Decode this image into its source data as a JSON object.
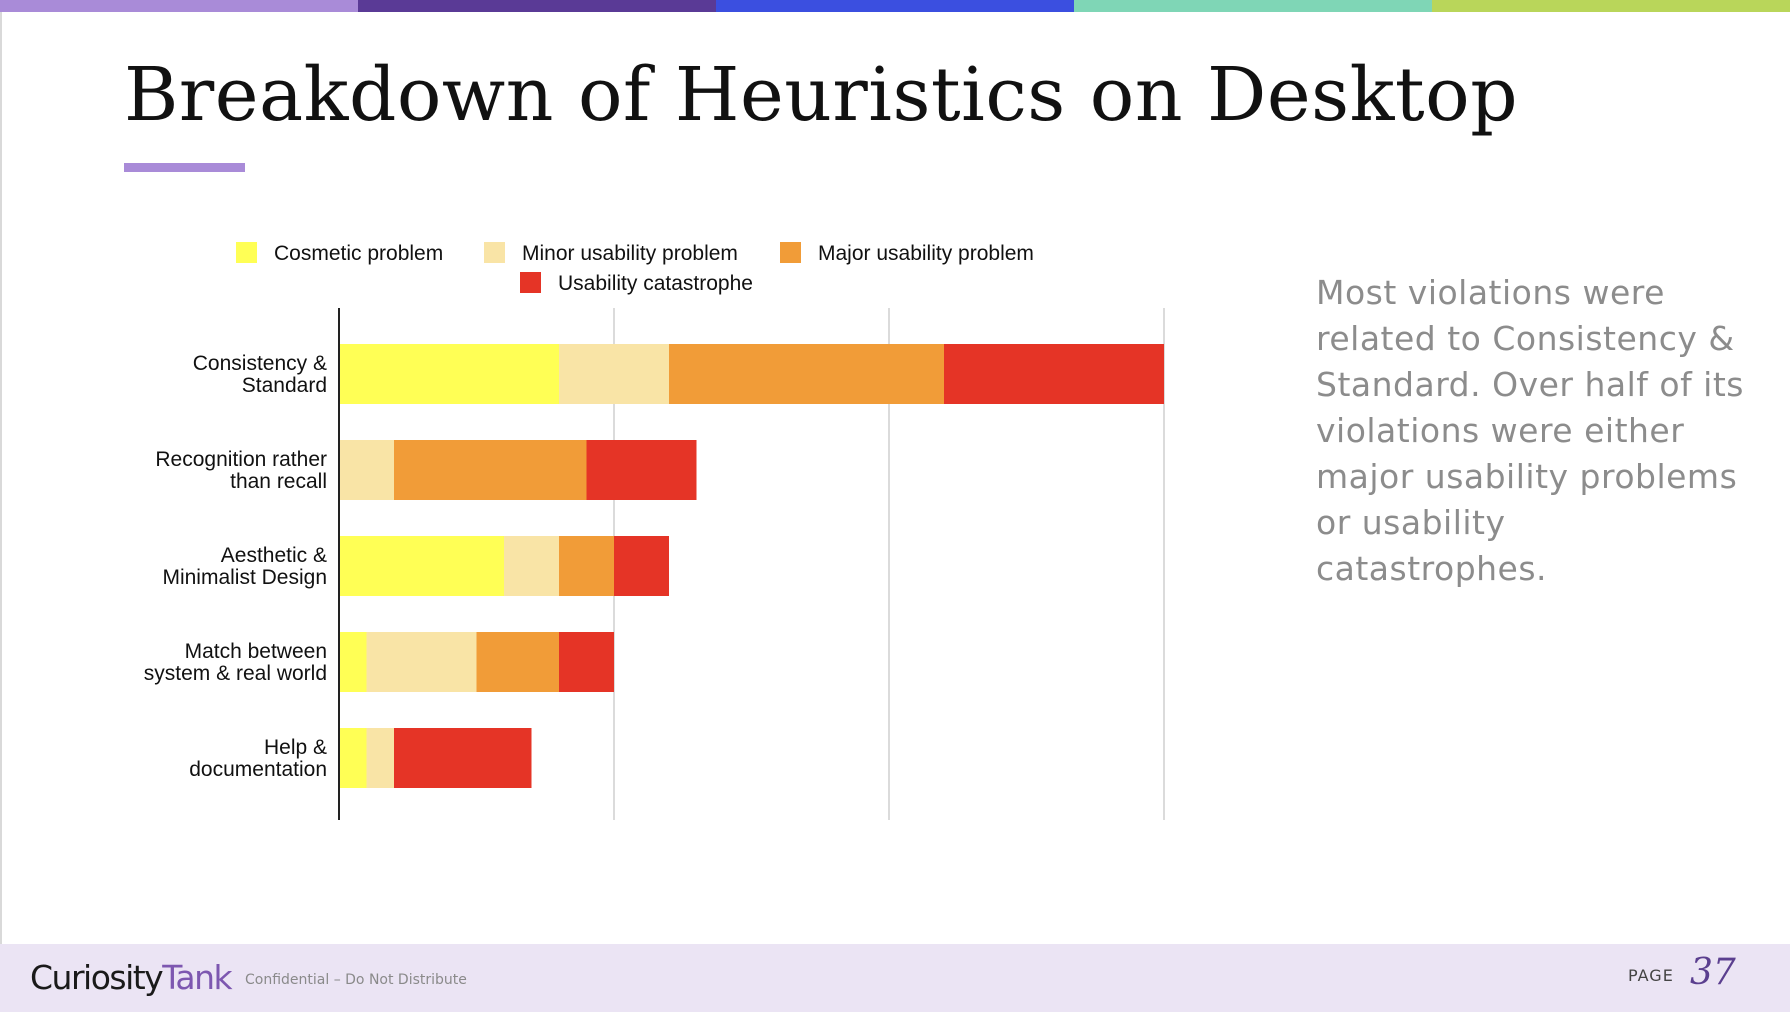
{
  "slide": {
    "title": "Breakdown of Heuristics on Desktop",
    "summary": "Most violations were related to Consistency & Standard. Over half of its violations were either major usability problems or usability catastrophes."
  },
  "colors": {
    "top_bar": [
      "#a98bd8",
      "#5a3a96",
      "#3b4fe0",
      "#7fd6b6",
      "#b9d65a"
    ],
    "title_underline": "#a98bd8",
    "footer_bg": "#ebe4f4",
    "brand_purple": "#7d57b0"
  },
  "footer": {
    "logo_part1": "Curiosity",
    "logo_part2": "Tank",
    "confidential": "Confidential – Do Not Distribute",
    "page_label": "PAGE",
    "page_number": "37"
  },
  "chart_data": {
    "type": "bar",
    "orientation": "horizontal",
    "stacked": true,
    "categories": [
      "Consistency & Standard",
      "Recognition rather than recall",
      "Aesthetic & Minimalist Design",
      "Match between system & real world",
      "Help & documentation"
    ],
    "category_lines": [
      [
        "Consistency &",
        "Standard"
      ],
      [
        "Recognition rather",
        "than recall"
      ],
      [
        "Aesthetic &",
        "Minimalist Design"
      ],
      [
        "Match between",
        "system & real world"
      ],
      [
        "Help &",
        "documentation"
      ]
    ],
    "series": [
      {
        "name": "Cosmetic problem",
        "color": "#ffff55",
        "values": [
          8,
          0,
          6,
          1,
          1
        ]
      },
      {
        "name": "Minor usability problem",
        "color": "#f9e4a6",
        "values": [
          4,
          2,
          2,
          4,
          1
        ]
      },
      {
        "name": "Major usability problem",
        "color": "#f19c38",
        "values": [
          10,
          7,
          2,
          3,
          0
        ]
      },
      {
        "name": "Usability catastrophe",
        "color": "#e53426",
        "values": [
          8,
          4,
          2,
          2,
          5
        ]
      }
    ],
    "xlim": [
      0,
      30
    ],
    "gridlines_x": [
      10,
      20,
      30
    ],
    "grid": true,
    "legend_position": "top",
    "xlabel": "",
    "ylabel": ""
  }
}
